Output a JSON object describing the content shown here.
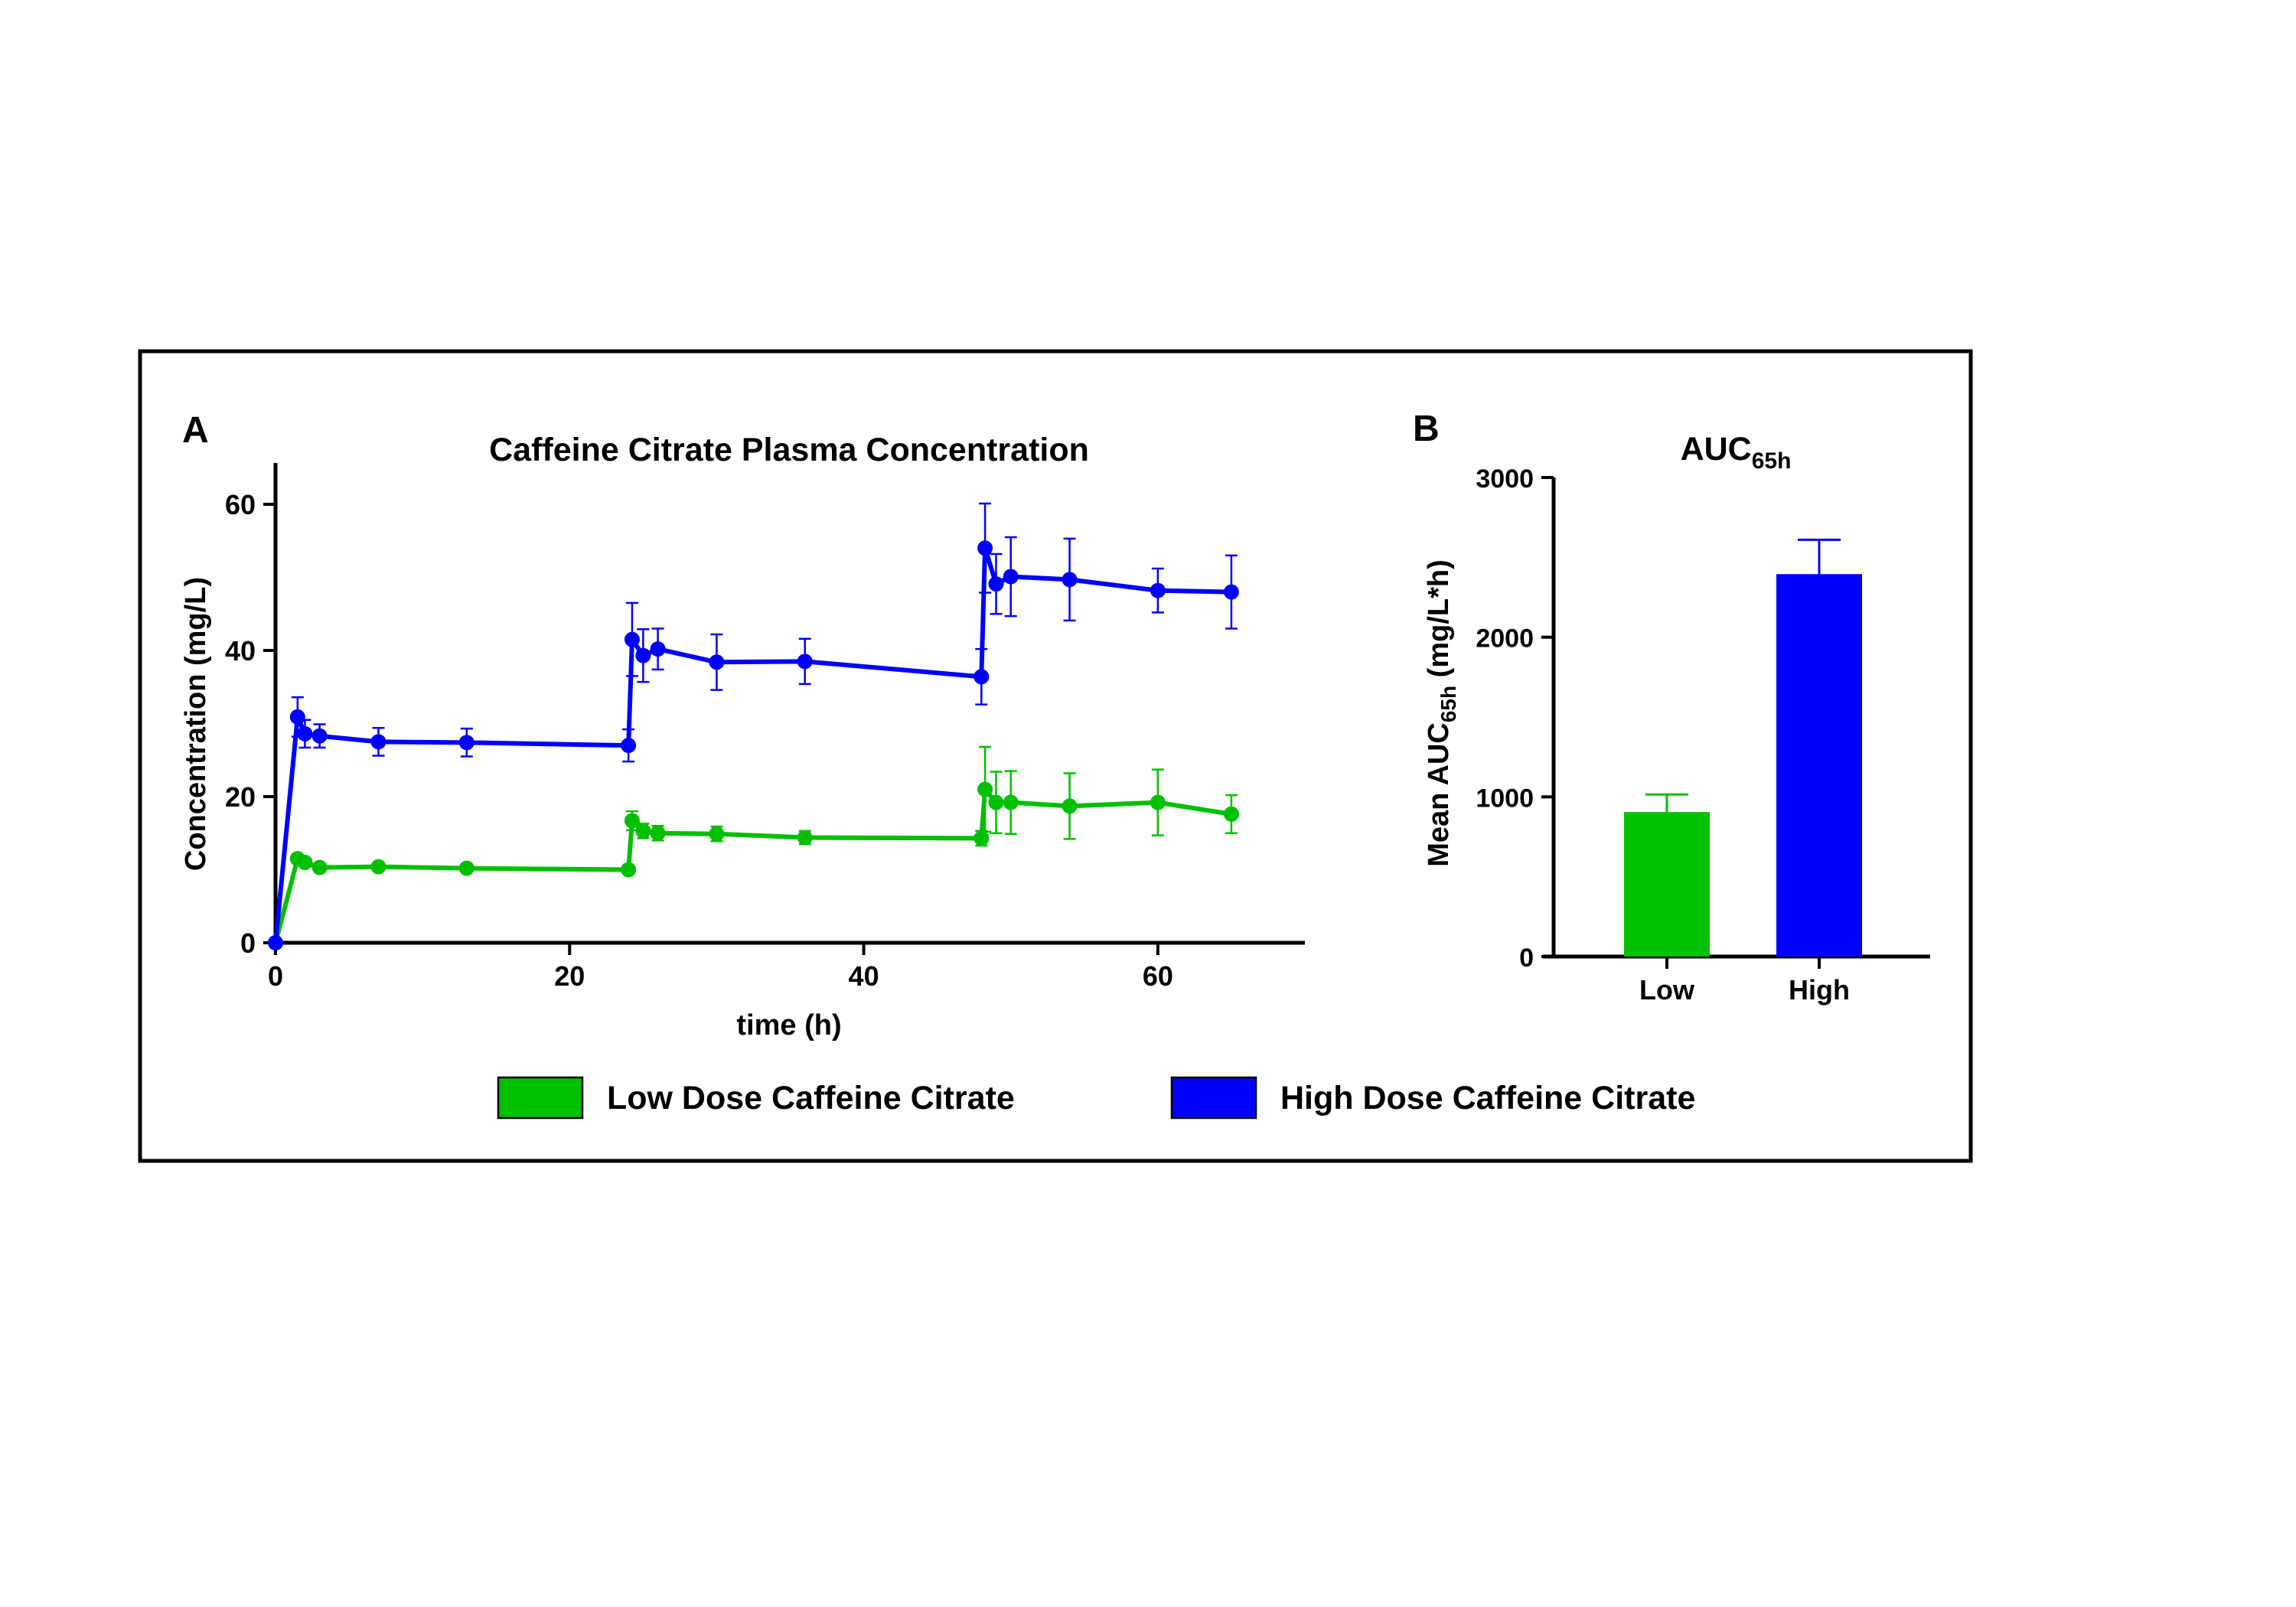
{
  "panel_a_label": "A",
  "panel_b_label": "B",
  "legend": [
    {
      "label": "Low Dose Caffeine Citrate",
      "color": "#00c000"
    },
    {
      "label": "High Dose Caffeine Citrate",
      "color": "#0000ff"
    }
  ],
  "chart_data": [
    {
      "type": "line",
      "title": "Caffeine Citrate Plasma Concentration",
      "xlabel": "time (h)",
      "ylabel": "Concentration (mg/L)",
      "xlim": [
        0,
        70
      ],
      "ylim": [
        0,
        65
      ],
      "xticks": [
        0,
        20,
        40,
        60
      ],
      "yticks": [
        0,
        20,
        40,
        60
      ],
      "grid": false,
      "legend_position": "bottom",
      "x": [
        0,
        1.5,
        2,
        3,
        7,
        13,
        24,
        24.25,
        25,
        26,
        30,
        36,
        48,
        48.25,
        49,
        50,
        54,
        60,
        65
      ],
      "series": [
        {
          "name": "Low Dose Caffeine Citrate",
          "color": "#00c000",
          "values": [
            0,
            11.5,
            11.0,
            10.3,
            10.4,
            10.2,
            10.0,
            16.7,
            15.3,
            15.0,
            14.9,
            14.4,
            14.3,
            21.0,
            19.2,
            19.2,
            18.7,
            19.2,
            17.6
          ],
          "errors": [
            0,
            0.5,
            0.5,
            0.4,
            0.4,
            0.4,
            0.4,
            1.3,
            1.0,
            1.0,
            1.0,
            0.9,
            1.0,
            5.8,
            4.2,
            4.3,
            4.5,
            4.5,
            2.6
          ]
        },
        {
          "name": "High Dose Caffeine Citrate",
          "color": "#0000ff",
          "values": [
            0,
            30.9,
            28.6,
            28.3,
            27.5,
            27.4,
            27.0,
            41.5,
            39.3,
            40.2,
            38.4,
            38.5,
            36.4,
            54.0,
            49.1,
            50.1,
            49.7,
            48.2,
            48.0
          ],
          "errors": [
            0,
            2.7,
            1.9,
            1.6,
            1.9,
            1.9,
            2.2,
            5.0,
            3.6,
            2.8,
            3.8,
            3.1,
            3.8,
            6.1,
            4.1,
            5.4,
            5.6,
            3.0,
            5.0
          ]
        }
      ]
    },
    {
      "type": "bar",
      "title": "AUC",
      "title_subscript": "65h",
      "ylabel": "Mean AUC",
      "ylabel_subscript": "65h",
      "ylabel_unit": " (mg/L*h)",
      "categories": [
        "Low",
        "High"
      ],
      "values": [
        905,
        2395
      ],
      "errors": [
        110,
        215
      ],
      "colors": [
        "#00c000",
        "#0000ff"
      ],
      "ylim": [
        0,
        3000
      ],
      "yticks": [
        0,
        1000,
        2000,
        3000
      ],
      "grid": false
    }
  ]
}
